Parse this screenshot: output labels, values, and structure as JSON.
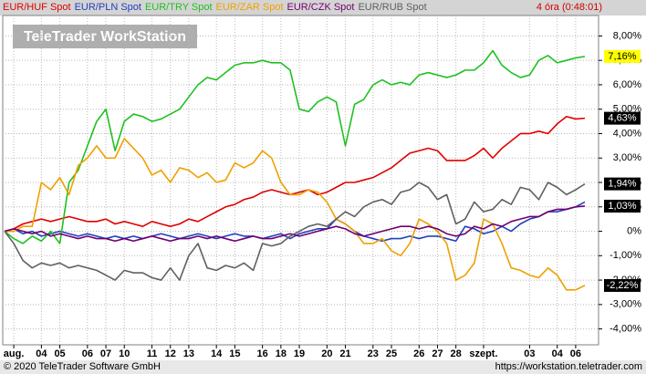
{
  "chart_data": {
    "type": "line",
    "watermark": "TeleTrader WorkStation",
    "status": "4 óra (0:48:01)",
    "copyright": "© 2020 TeleTrader Software GmbH",
    "url": "https://workstation.teletrader.com",
    "grid": true,
    "xlim": [
      0,
      63
    ],
    "xticks": [
      {
        "value": 1,
        "label": "aug."
      },
      {
        "value": 4,
        "label": "04"
      },
      {
        "value": 6,
        "label": "05"
      },
      {
        "value": 9,
        "label": "06"
      },
      {
        "value": 11,
        "label": "07"
      },
      {
        "value": 13,
        "label": "10"
      },
      {
        "value": 16,
        "label": "11"
      },
      {
        "value": 18,
        "label": "12"
      },
      {
        "value": 20,
        "label": "13"
      },
      {
        "value": 23,
        "label": "14"
      },
      {
        "value": 25,
        "label": "15"
      },
      {
        "value": 28,
        "label": "16"
      },
      {
        "value": 30,
        "label": "18"
      },
      {
        "value": 32,
        "label": "19"
      },
      {
        "value": 35,
        "label": "20"
      },
      {
        "value": 37,
        "label": "21"
      },
      {
        "value": 40,
        "label": "23"
      },
      {
        "value": 42,
        "label": "25"
      },
      {
        "value": 45,
        "label": "26"
      },
      {
        "value": 47,
        "label": "27"
      },
      {
        "value": 49,
        "label": "28"
      },
      {
        "value": 52,
        "label": "szept."
      },
      {
        "value": 57,
        "label": "03"
      },
      {
        "value": 60,
        "label": "04"
      },
      {
        "value": 62,
        "label": "06"
      }
    ],
    "ylim": [
      -4.65,
      8.8
    ],
    "yticks": [
      {
        "value": 8,
        "label": "8,00%"
      },
      {
        "value": 7,
        "label": "7,00%"
      },
      {
        "value": 6,
        "label": "6,00%"
      },
      {
        "value": 5,
        "label": "5,00%"
      },
      {
        "value": 4,
        "label": "4,00%"
      },
      {
        "value": 3,
        "label": "3,00%"
      },
      {
        "value": 2,
        "label": "2,00%"
      },
      {
        "value": 1,
        "label": "1,00%"
      },
      {
        "value": 0,
        "label": "0%"
      },
      {
        "value": -1,
        "label": "-1,00%"
      },
      {
        "value": -2,
        "label": "-2,00%"
      },
      {
        "value": -3,
        "label": "-3,00%"
      },
      {
        "value": -4,
        "label": "-4,00%"
      }
    ],
    "series": [
      {
        "name": "EUR/HUF Spot",
        "color": "#e00000",
        "last_label": "4,63%",
        "label_bg": "#000000",
        "label_fg": "#ffffff",
        "values": [
          0,
          0.1,
          0.3,
          0.4,
          0.5,
          0.4,
          0.5,
          0.6,
          0.5,
          0.4,
          0.4,
          0.5,
          0.3,
          0.4,
          0.3,
          0.2,
          0.4,
          0.3,
          0.2,
          0.3,
          0.5,
          0.4,
          0.6,
          0.8,
          1.0,
          1.1,
          1.3,
          1.4,
          1.6,
          1.7,
          1.6,
          1.5,
          1.6,
          1.7,
          1.5,
          1.6,
          1.8,
          2.0,
          2.0,
          2.1,
          2.2,
          2.4,
          2.6,
          2.9,
          3.2,
          3.3,
          3.4,
          3.3,
          2.9,
          2.9,
          2.9,
          3.1,
          3.4,
          3.0,
          3.4,
          3.7,
          4.0,
          4.0,
          4.1,
          4.0,
          4.4,
          4.7,
          4.6,
          4.63
        ]
      },
      {
        "name": "EUR/PLN Spot",
        "color": "#2040c0",
        "values": [
          0,
          0.1,
          -0.1,
          0,
          -0.2,
          -0.1,
          0,
          -0.1,
          -0.2,
          -0.1,
          -0.2,
          -0.3,
          -0.2,
          -0.3,
          -0.2,
          -0.3,
          -0.2,
          -0.1,
          -0.2,
          -0.3,
          -0.2,
          -0.1,
          -0.2,
          -0.3,
          -0.2,
          -0.1,
          -0.2,
          -0.2,
          -0.3,
          -0.2,
          -0.1,
          -0.3,
          -0.1,
          0,
          0.1,
          0.1,
          0.5,
          0.3,
          0,
          -0.2,
          -0.3,
          -0.4,
          -0.3,
          -0.3,
          -0.2,
          -0.3,
          -0.2,
          -0.2,
          -0.3,
          -0.4,
          0.2,
          0.1,
          -0.1,
          0,
          0.2,
          0,
          0.3,
          0.5,
          0.6,
          0.8,
          0.8,
          0.9,
          1.0,
          1.2
        ]
      },
      {
        "name": "EUR/TRY Spot",
        "color": "#20c020",
        "last_label": "7,16%",
        "label_bg": "#ffff00",
        "label_fg": "#000000",
        "values": [
          0,
          -0.3,
          -0.5,
          -0.2,
          -0.4,
          0,
          -0.5,
          2.0,
          2.5,
          3.5,
          4.5,
          5.0,
          3.3,
          4.5,
          4.8,
          4.7,
          4.5,
          4.6,
          4.8,
          5.0,
          5.5,
          6.0,
          6.3,
          6.2,
          6.5,
          6.8,
          6.9,
          6.9,
          7.0,
          6.9,
          6.9,
          6.6,
          5.0,
          4.9,
          5.3,
          5.5,
          5.3,
          3.5,
          5.2,
          5.4,
          6.0,
          6.2,
          6.0,
          6.1,
          6.0,
          6.4,
          6.5,
          6.4,
          6.3,
          6.4,
          6.6,
          6.6,
          6.9,
          7.4,
          6.8,
          6.5,
          6.3,
          6.4,
          7.0,
          7.2,
          6.9,
          7.0,
          7.1,
          7.16
        ]
      },
      {
        "name": "EUR/ZAR Spot",
        "color": "#f0a000",
        "last_label": "-2,22%",
        "label_bg": "#000000",
        "label_fg": "#ffffff",
        "values": [
          0,
          0,
          0.2,
          0.2,
          2.0,
          1.7,
          2.2,
          1.5,
          2.7,
          3.0,
          3.5,
          3.0,
          3.0,
          3.8,
          3.4,
          3.0,
          2.3,
          2.5,
          2.0,
          2.6,
          2.5,
          2.2,
          2.4,
          2.0,
          2.1,
          2.8,
          2.6,
          2.8,
          3.3,
          3.0,
          2.0,
          1.5,
          1.5,
          1.7,
          1.6,
          1.2,
          0.5,
          0.3,
          0,
          -0.5,
          -0.5,
          -0.3,
          -0.8,
          -1.0,
          -0.5,
          0.5,
          0.3,
          0,
          -0.5,
          -2.0,
          -1.8,
          -1.3,
          0.5,
          0.3,
          -0.5,
          -1.5,
          -1.6,
          -1.8,
          -1.9,
          -1.5,
          -1.8,
          -2.4,
          -2.4,
          -2.22
        ]
      },
      {
        "name": "EUR/CZK Spot",
        "color": "#700070",
        "last_label": "1,03%",
        "label_bg": "#000000",
        "label_fg": "#ffffff",
        "values": [
          0,
          0.1,
          0,
          -0.1,
          0,
          -0.2,
          -0.1,
          -0.2,
          -0.3,
          -0.2,
          -0.3,
          -0.3,
          -0.4,
          -0.3,
          -0.4,
          -0.3,
          -0.2,
          -0.3,
          -0.4,
          -0.3,
          -0.3,
          -0.2,
          -0.3,
          -0.2,
          -0.3,
          -0.4,
          -0.3,
          -0.2,
          -0.3,
          -0.3,
          -0.2,
          -0.1,
          -0.2,
          -0.1,
          0,
          0.1,
          0.2,
          0.1,
          -0.1,
          -0.2,
          -0.1,
          0,
          0.1,
          0.2,
          0.2,
          0.1,
          0.2,
          0.1,
          -0.1,
          -0.2,
          -0.1,
          0.2,
          0.1,
          0.3,
          0.2,
          0.4,
          0.5,
          0.6,
          0.6,
          0.8,
          0.9,
          0.9,
          1.0,
          1.03
        ]
      },
      {
        "name": "EUR/RUB Spot",
        "color": "#606060",
        "last_label": "1,94%",
        "label_bg": "#000000",
        "label_fg": "#ffffff",
        "values": [
          0,
          -0.5,
          -1.2,
          -1.5,
          -1.3,
          -1.4,
          -1.3,
          -1.5,
          -1.4,
          -1.5,
          -1.6,
          -1.8,
          -2.0,
          -1.6,
          -1.7,
          -1.7,
          -1.9,
          -2.0,
          -1.5,
          -2.0,
          -1.0,
          -0.5,
          -1.5,
          -1.6,
          -1.4,
          -1.5,
          -1.3,
          -1.6,
          -0.5,
          -0.6,
          -0.5,
          -0.2,
          0,
          0.2,
          0.3,
          0.2,
          0.5,
          0.8,
          0.6,
          1.0,
          1.2,
          1.3,
          1.1,
          1.6,
          1.7,
          2.0,
          1.8,
          1.3,
          1.5,
          0.3,
          0.5,
          1.2,
          0.8,
          0.9,
          1.3,
          1.1,
          1.8,
          1.7,
          1.3,
          2.0,
          1.8,
          1.5,
          1.7,
          1.94
        ]
      }
    ]
  }
}
